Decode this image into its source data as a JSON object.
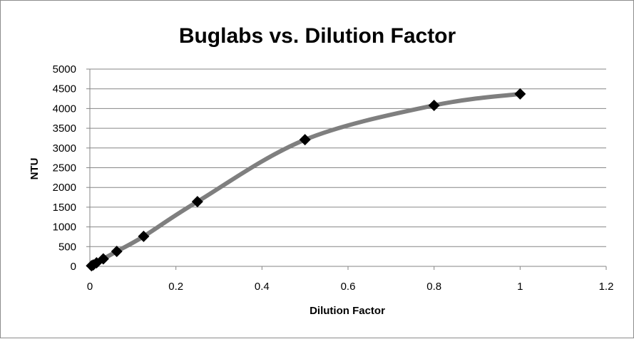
{
  "chart_data": {
    "type": "scatter",
    "title": "Buglabs vs. Dilution Factor",
    "xlabel": "Dilution Factor",
    "ylabel": "NTU",
    "xlim": [
      0,
      1.2
    ],
    "ylim": [
      0,
      5000
    ],
    "x_ticks": [
      0,
      0.2,
      0.4,
      0.6,
      0.8,
      1,
      1.2
    ],
    "y_ticks": [
      0,
      500,
      1000,
      1500,
      2000,
      2500,
      3000,
      3500,
      4000,
      4500,
      5000
    ],
    "grid": "horizontal",
    "legend": "none",
    "trendline": "smooth",
    "colors": {
      "marker": "#000000",
      "line": "#7f7f7f",
      "grid": "#868686"
    },
    "series": [
      {
        "x": [
          0.0039,
          0.0078,
          0.0156,
          0.03125,
          0.0625,
          0.125,
          0.25,
          0.5,
          0.8,
          1.0
        ],
        "y": [
          15,
          35,
          90,
          190,
          380,
          760,
          1640,
          3210,
          4080,
          4370
        ]
      }
    ]
  }
}
